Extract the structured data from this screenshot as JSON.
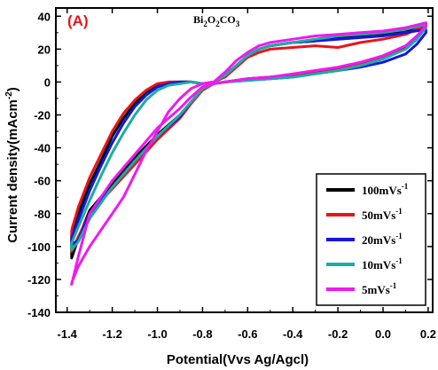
{
  "chart_data": {
    "type": "line",
    "panel_label": "(A)",
    "annotation": {
      "base": "Bi",
      "s1": "2",
      "mid": "O",
      "s2": "2",
      "tail": "CO",
      "s3": "3"
    },
    "xlabel": "Potential(Vvs Ag/Agcl)",
    "ylabel": {
      "main": "Current density(mAcm",
      "sup": "-2",
      "close": ")"
    },
    "xlim": [
      -1.45,
      0.22
    ],
    "ylim": [
      -140,
      45
    ],
    "x_ticks": [
      -1.4,
      -1.2,
      -1.0,
      -0.8,
      -0.6,
      -0.4,
      -0.2,
      0.0,
      0.2
    ],
    "x_tick_labels": [
      "-1.4",
      "-1.2",
      "-1.0",
      "-0.8",
      "-0.6",
      "-0.4",
      "-0.2",
      "0.0",
      "0.2"
    ],
    "y_ticks": [
      -140,
      -120,
      -100,
      -80,
      -60,
      -40,
      -20,
      0,
      20,
      40
    ],
    "y_tick_labels": [
      "-140",
      "-120",
      "-100",
      "-80",
      "-60",
      "-40",
      "-20",
      "0",
      "20",
      "40"
    ],
    "grid": false,
    "legend_position": "bottom-right",
    "series": [
      {
        "name": "100mVs-1",
        "label": {
          "main": "100mVs",
          "sup": "-1"
        },
        "color": "#000000",
        "x": [
          -1.38,
          -1.35,
          -1.3,
          -1.25,
          -1.2,
          -1.15,
          -1.1,
          -1.05,
          -1.0,
          -0.95,
          -0.9,
          -0.85,
          -0.8,
          -0.75,
          -0.7,
          -0.65,
          -0.6,
          -0.55,
          -0.5,
          -0.4,
          -0.3,
          -0.2,
          -0.1,
          0.0,
          0.1,
          0.18,
          0.18,
          0.15,
          0.1,
          0.0,
          -0.1,
          -0.2,
          -0.3,
          -0.4,
          -0.5,
          -0.6,
          -0.7,
          -0.75,
          -0.8,
          -0.85,
          -0.9,
          -1.0,
          -1.1,
          -1.2,
          -1.3,
          -1.35,
          -1.38
        ],
        "y": [
          -92,
          -80,
          -62,
          -48,
          -33,
          -22,
          -13,
          -6,
          -2,
          0,
          0,
          0,
          -1,
          0,
          4,
          10,
          16,
          20,
          22,
          24,
          25,
          27,
          28,
          29,
          31,
          35,
          33,
          27,
          21,
          15,
          11,
          8,
          6,
          4,
          3,
          2,
          0,
          -1,
          -4,
          -12,
          -20,
          -32,
          -46,
          -62,
          -78,
          -95,
          -107
        ]
      },
      {
        "name": "50mVs-1",
        "label": {
          "main": "50mVs",
          "sup": "-1"
        },
        "color": "#e8141a",
        "x": [
          -1.38,
          -1.35,
          -1.3,
          -1.25,
          -1.2,
          -1.15,
          -1.1,
          -1.05,
          -1.0,
          -0.95,
          -0.9,
          -0.85,
          -0.8,
          -0.75,
          -0.7,
          -0.65,
          -0.6,
          -0.55,
          -0.5,
          -0.4,
          -0.3,
          -0.2,
          -0.1,
          0.0,
          0.1,
          0.18,
          0.18,
          0.15,
          0.1,
          0.0,
          -0.1,
          -0.2,
          -0.3,
          -0.4,
          -0.5,
          -0.6,
          -0.7,
          -0.75,
          -0.8,
          -0.85,
          -0.9,
          -1.0,
          -1.1,
          -1.2,
          -1.3,
          -1.35,
          -1.38
        ],
        "y": [
          -90,
          -76,
          -58,
          -44,
          -30,
          -19,
          -11,
          -5,
          -1,
          0,
          0,
          0,
          -1,
          0,
          3,
          9,
          15,
          18,
          20,
          21,
          22,
          21,
          24,
          26,
          29,
          34,
          32,
          26,
          20,
          15,
          11,
          8,
          6,
          4,
          3,
          2,
          0,
          -1,
          -5,
          -13,
          -22,
          -35,
          -50,
          -65,
          -80,
          -94,
          -103
        ]
      },
      {
        "name": "20mVs-1",
        "label": {
          "main": "20mVs",
          "sup": "-1"
        },
        "color": "#1515e0",
        "x": [
          -1.38,
          -1.35,
          -1.3,
          -1.25,
          -1.2,
          -1.15,
          -1.1,
          -1.05,
          -1.0,
          -0.95,
          -0.9,
          -0.85,
          -0.8,
          -0.75,
          -0.7,
          -0.65,
          -0.6,
          -0.55,
          -0.5,
          -0.4,
          -0.3,
          -0.2,
          -0.1,
          0.0,
          0.1,
          0.19,
          0.19,
          0.15,
          0.1,
          0.0,
          -0.1,
          -0.2,
          -0.3,
          -0.4,
          -0.5,
          -0.6,
          -0.7,
          -0.75,
          -0.8,
          -0.85,
          -0.9,
          -1.0,
          -1.1,
          -1.2,
          -1.3,
          -1.35,
          -1.38
        ],
        "y": [
          -95,
          -84,
          -66,
          -51,
          -37,
          -25,
          -15,
          -8,
          -3,
          -1,
          0,
          0,
          -1,
          0,
          4,
          10,
          16,
          20,
          22,
          24,
          25,
          26,
          27,
          28,
          30,
          32,
          30,
          23,
          17,
          12,
          9,
          7,
          5,
          3,
          2,
          1,
          0,
          -1,
          -4,
          -12,
          -21,
          -33,
          -48,
          -64,
          -80,
          -96,
          -99
        ]
      },
      {
        "name": "10mVs-1",
        "label": {
          "main": "10mVs",
          "sup": "-1"
        },
        "color": "#1aada3",
        "x": [
          -1.38,
          -1.35,
          -1.3,
          -1.25,
          -1.2,
          -1.15,
          -1.1,
          -1.05,
          -1.0,
          -0.95,
          -0.9,
          -0.85,
          -0.8,
          -0.75,
          -0.7,
          -0.65,
          -0.6,
          -0.55,
          -0.5,
          -0.4,
          -0.3,
          -0.2,
          -0.1,
          0.0,
          0.1,
          0.19,
          0.19,
          0.15,
          0.1,
          0.0,
          -0.1,
          -0.2,
          -0.3,
          -0.4,
          -0.5,
          -0.6,
          -0.7,
          -0.75,
          -0.8,
          -0.85,
          -0.9,
          -1.0,
          -1.1,
          -1.2,
          -1.3,
          -1.35,
          -1.38
        ],
        "y": [
          -98,
          -88,
          -72,
          -57,
          -43,
          -31,
          -20,
          -11,
          -5,
          -2,
          -1,
          0,
          -1,
          0,
          4,
          10,
          16,
          20,
          22,
          24,
          26,
          28,
          29,
          30,
          32,
          35,
          33,
          26,
          20,
          14,
          10,
          7,
          5,
          3,
          2,
          1,
          0,
          -1,
          -4,
          -12,
          -20,
          -33,
          -48,
          -64,
          -83,
          -97,
          -102
        ]
      },
      {
        "name": "5mVs-1",
        "label": {
          "main": "5mVs",
          "sup": "-1"
        },
        "color": "#f019f0",
        "x": [
          -1.38,
          -1.35,
          -1.3,
          -1.25,
          -1.2,
          -1.15,
          -1.1,
          -1.05,
          -1.0,
          -0.95,
          -0.9,
          -0.85,
          -0.8,
          -0.75,
          -0.7,
          -0.65,
          -0.6,
          -0.55,
          -0.5,
          -0.4,
          -0.3,
          -0.2,
          -0.1,
          0.0,
          0.1,
          0.19,
          0.19,
          0.15,
          0.1,
          0.0,
          -0.1,
          -0.2,
          -0.3,
          -0.4,
          -0.5,
          -0.6,
          -0.7,
          -0.75,
          -0.8,
          -0.85,
          -0.9,
          -1.0,
          -1.1,
          -1.2,
          -1.3,
          -1.35,
          -1.38
        ],
        "y": [
          -122,
          -112,
          -100,
          -90,
          -80,
          -70,
          -56,
          -42,
          -30,
          -18,
          -10,
          -4,
          -1,
          0,
          6,
          13,
          18,
          22,
          24,
          26,
          28,
          29,
          30,
          31,
          33,
          36,
          34,
          28,
          22,
          16,
          12,
          9,
          7,
          5,
          3,
          2,
          0,
          -1,
          -3,
          -9,
          -16,
          -28,
          -44,
          -60,
          -80,
          -106,
          -123
        ]
      }
    ]
  }
}
